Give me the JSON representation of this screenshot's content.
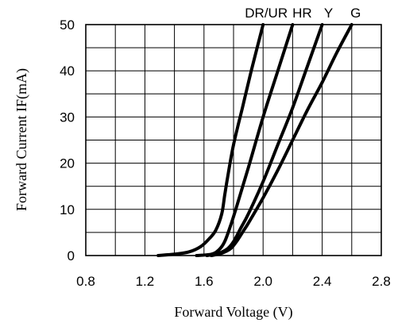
{
  "chart_data": {
    "type": "line",
    "xlabel": "Forward Voltage (V)",
    "ylabel": "Forward Current IF(mA)",
    "xlim": [
      0.8,
      2.8
    ],
    "ylim": [
      0,
      50
    ],
    "x_ticks": [
      "0.8",
      "1.2",
      "1.6",
      "2.0",
      "2.4",
      "2.8"
    ],
    "x_tick_values": [
      0.8,
      1.2,
      1.6,
      2.0,
      2.4,
      2.8
    ],
    "y_ticks": [
      "0",
      "10",
      "20",
      "30",
      "40",
      "50"
    ],
    "y_tick_values": [
      0,
      10,
      20,
      30,
      40,
      50
    ],
    "grid": true,
    "grid_x_step": 0.2,
    "grid_y_step": 5,
    "series": [
      {
        "name": "DR/UR",
        "x": [
          1.29,
          1.4,
          1.5,
          1.58,
          1.64,
          1.68,
          1.72,
          1.74,
          1.76,
          1.8,
          1.86,
          1.92,
          2.0
        ],
        "y": [
          0,
          0.3,
          0.8,
          2.0,
          3.8,
          5.5,
          9.0,
          13,
          17,
          24,
          32,
          40,
          50
        ]
      },
      {
        "name": "HR",
        "x": [
          1.55,
          1.65,
          1.7,
          1.74,
          1.78,
          1.82,
          1.9,
          2.0,
          2.1,
          2.2
        ],
        "y": [
          0,
          0.3,
          1.2,
          3.0,
          6.5,
          10.5,
          19,
          30,
          40,
          50
        ]
      },
      {
        "name": "Y",
        "x": [
          1.62,
          1.7,
          1.76,
          1.8,
          1.85,
          1.9,
          2.0,
          2.1,
          2.2,
          2.3,
          2.4
        ],
        "y": [
          0,
          0.5,
          1.5,
          3.0,
          6.0,
          9.0,
          16,
          24,
          32,
          41,
          50
        ]
      },
      {
        "name": "G",
        "x": [
          1.65,
          1.72,
          1.78,
          1.82,
          1.86,
          1.9,
          2.0,
          2.1,
          2.2,
          2.3,
          2.4,
          2.5,
          2.6
        ],
        "y": [
          0,
          0.5,
          1.5,
          3.0,
          5.0,
          7.0,
          12.5,
          18.5,
          25,
          31.5,
          37.5,
          44,
          50
        ]
      }
    ],
    "series_labels": [
      "DR/UR",
      "HR",
      "Y",
      "G"
    ]
  }
}
